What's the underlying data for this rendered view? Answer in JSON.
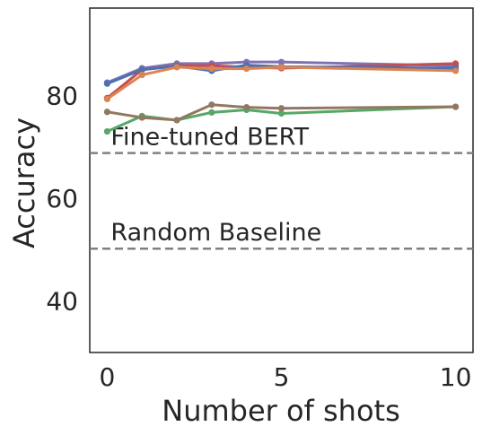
{
  "chart_data": {
    "type": "line",
    "title": "",
    "xlabel": "Number of shots",
    "ylabel": "Accuracy",
    "xlim": [
      -0.5,
      10.5
    ],
    "ylim": [
      30,
      97
    ],
    "xticks": [
      0,
      5,
      10
    ],
    "yticks": [
      40,
      60,
      80
    ],
    "grid": false,
    "legend": "none",
    "x": [
      0,
      1,
      2,
      3,
      4,
      5,
      10
    ],
    "series": [
      {
        "color": "#8172b3",
        "values": [
          82.5,
          85.3,
          86.2,
          86.2,
          86.5,
          86.5,
          85.8
        ]
      },
      {
        "color": "#c44e52",
        "values": [
          79.5,
          85.0,
          85.8,
          85.8,
          85.5,
          85.3,
          86.2
        ]
      },
      {
        "color": "#4c72b0",
        "values": [
          82.3,
          85.0,
          85.7,
          84.8,
          85.9,
          85.6,
          85.3
        ]
      },
      {
        "color": "#dd8452",
        "values": [
          79.3,
          84.0,
          85.5,
          85.2,
          85.2,
          85.5,
          84.8
        ]
      },
      {
        "color": "#55a868",
        "values": [
          73.0,
          76.0,
          75.2,
          76.7,
          77.2,
          76.5,
          77.8
        ]
      },
      {
        "color": "#937860",
        "values": [
          76.8,
          75.7,
          75.2,
          78.2,
          77.7,
          77.5,
          77.8
        ]
      }
    ],
    "reference_lines": [
      {
        "label": "Fine-tuned BERT",
        "value": 68.8,
        "color": "#808080"
      },
      {
        "label": "Random Baseline",
        "value": 50.2,
        "color": "#808080"
      }
    ]
  }
}
